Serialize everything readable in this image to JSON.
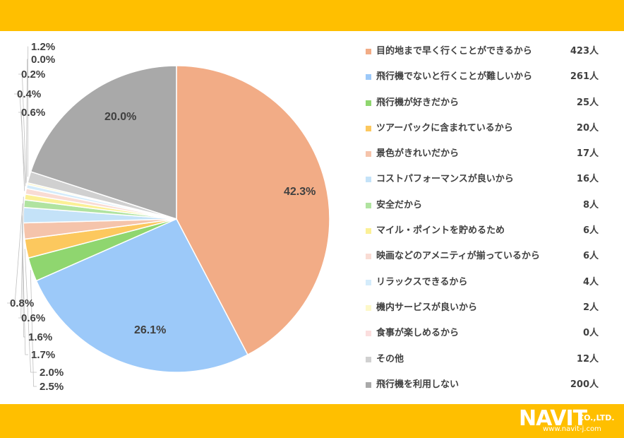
{
  "colors": {
    "band": "#ffbf00"
  },
  "logo": {
    "name": "NAVIT",
    "suffix": "CO.,LTD.",
    "url": "www.navit-j.com"
  },
  "chart_data": {
    "type": "pie",
    "start_angle": "top",
    "direction": "clockwise",
    "slices": [
      {
        "label": "目的地まで早く行くことができるから",
        "count_label": "423人",
        "value": 42.3,
        "pct_label": "42.3%",
        "color": "#f2ac86"
      },
      {
        "label": "飛行機でないと行くことが難しいから",
        "count_label": "261人",
        "value": 26.1,
        "pct_label": "26.1%",
        "color": "#9cc9f9"
      },
      {
        "label": "飛行機が好きだから",
        "count_label": "25人",
        "value": 2.5,
        "pct_label": "2.5%",
        "color": "#8fd66f"
      },
      {
        "label": "ツアーパックに含まれているから",
        "count_label": "20人",
        "value": 2.0,
        "pct_label": "2.0%",
        "color": "#fcc85e"
      },
      {
        "label": "景色がきれいだから",
        "count_label": "17人",
        "value": 1.7,
        "pct_label": "1.7%",
        "color": "#f5c4ab"
      },
      {
        "label": "コストパフォーマンスが良いから",
        "count_label": "16人",
        "value": 1.6,
        "pct_label": "1.6%",
        "color": "#c4e2f8"
      },
      {
        "label": "安全だから",
        "count_label": "8人",
        "value": 0.8,
        "pct_label": "0.8%",
        "color": "#b0e3a0"
      },
      {
        "label": "マイル・ポイントを貯めるため",
        "count_label": "6人",
        "value": 0.6,
        "pct_label": "0.6%",
        "color": "#fbf096"
      },
      {
        "label": "映画などのアメニティが揃っているから",
        "count_label": "6人",
        "value": 0.6,
        "pct_label": "0.6%",
        "color": "#f9dcd4"
      },
      {
        "label": "リラックスできるから",
        "count_label": "4人",
        "value": 0.4,
        "pct_label": "0.4%",
        "color": "#d4ecfb"
      },
      {
        "label": "機内サービスが良いから",
        "count_label": "2人",
        "value": 0.2,
        "pct_label": "0.2%",
        "color": "#fdf8c8"
      },
      {
        "label": "食事が楽しめるから",
        "count_label": "0人",
        "value": 0.0,
        "pct_label": "0.0%",
        "color": "#fbdede"
      },
      {
        "label": "その他",
        "count_label": "12人",
        "value": 1.2,
        "pct_label": "1.2%",
        "color": "#d0d0d0"
      },
      {
        "label": "飛行機を利用しない",
        "count_label": "200人",
        "value": 20.0,
        "pct_label": "20.0%",
        "color": "#a9a9a9"
      }
    ]
  }
}
